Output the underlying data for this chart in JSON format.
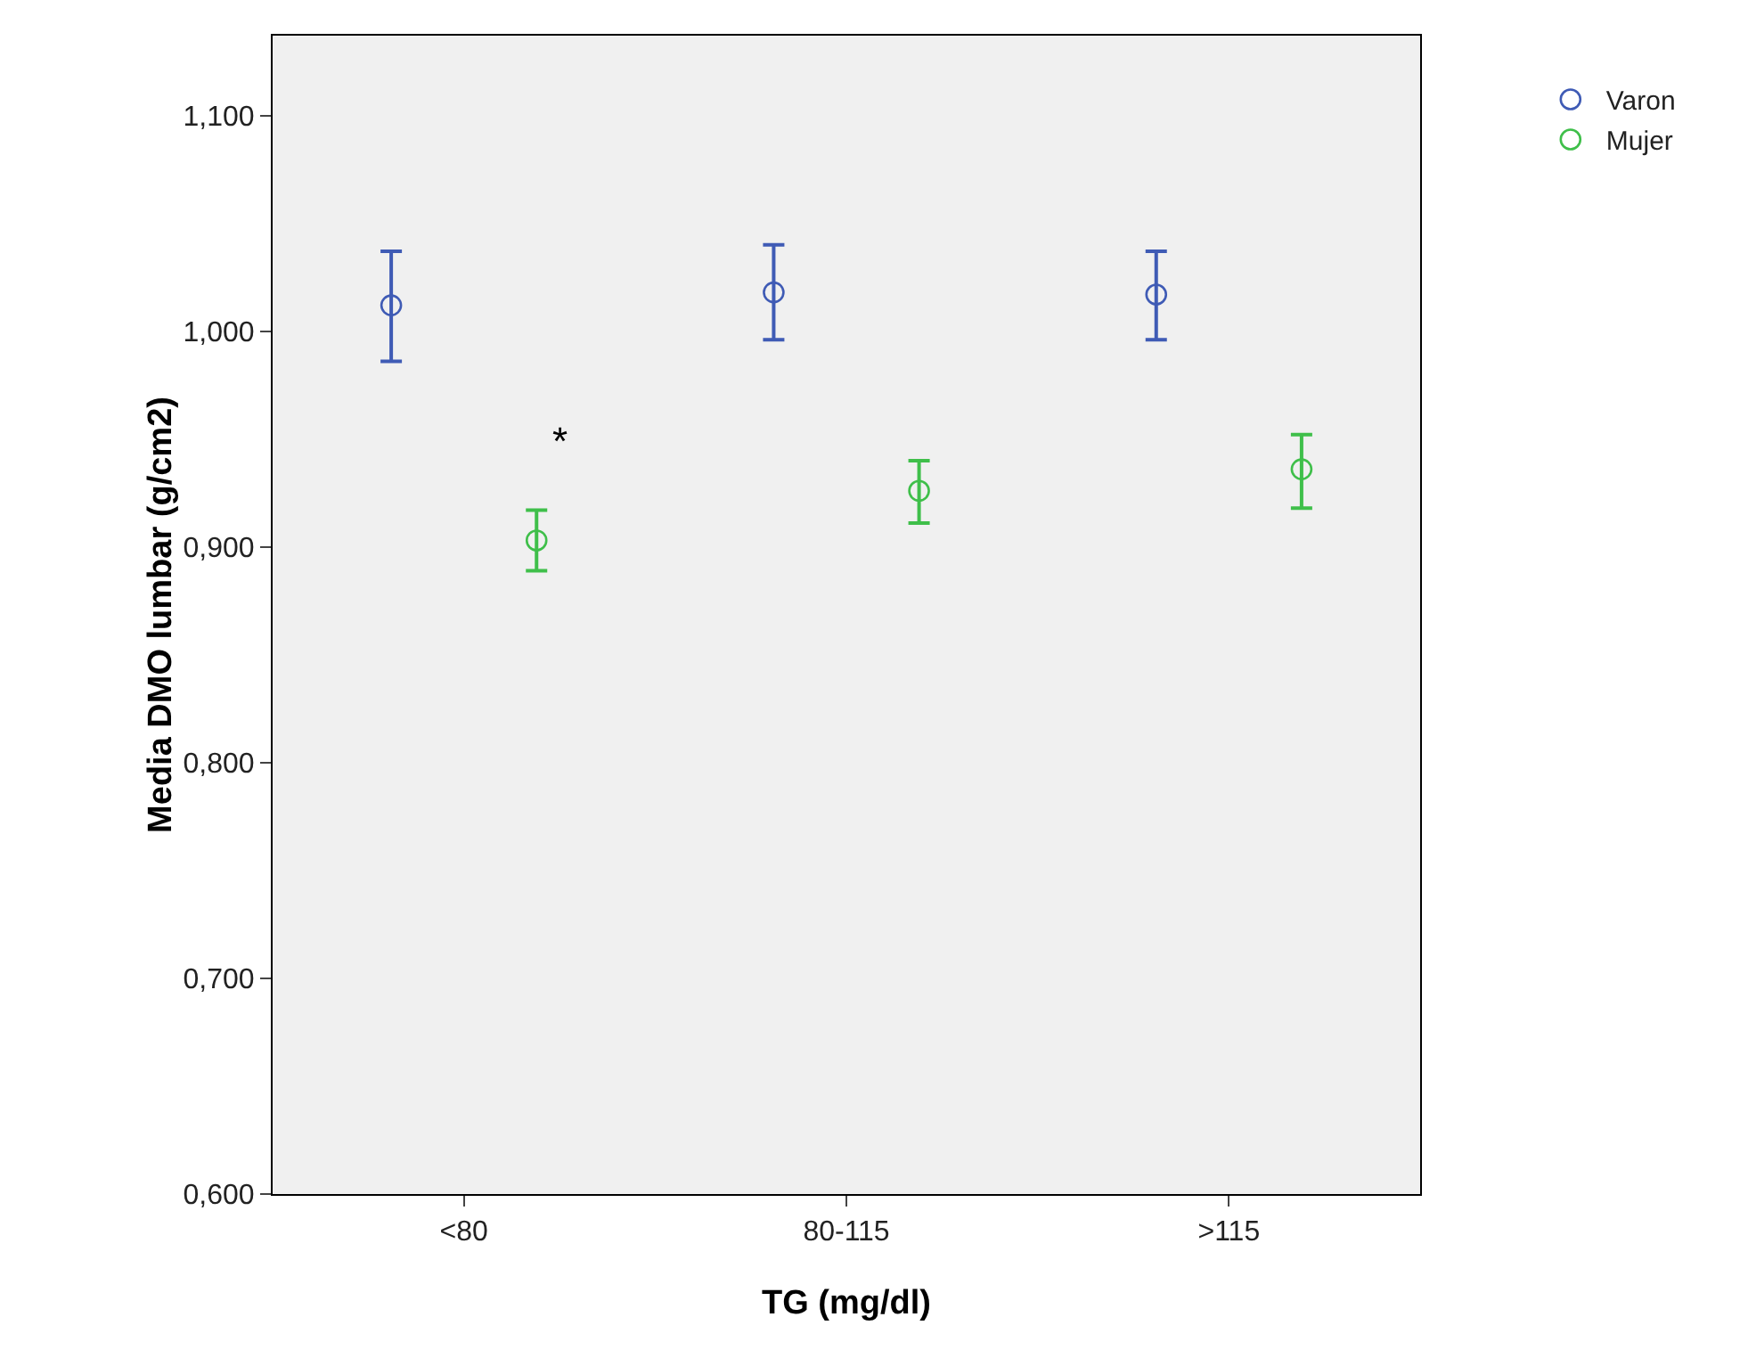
{
  "chart_data": {
    "type": "scatter",
    "xlabel": "TG (mg/dl)",
    "ylabel": "Media DMO lumbar (g/cm2)",
    "categories": [
      "<80",
      "80-115",
      ">115"
    ],
    "series": [
      {
        "name": "Varon",
        "color": "#3f5bb5",
        "values": [
          1.012,
          1.018,
          1.017
        ],
        "errors": [
          [
            0.986,
            1.037
          ],
          [
            0.996,
            1.04
          ],
          [
            0.996,
            1.037
          ]
        ]
      },
      {
        "name": "Mujer",
        "color": "#3fbf4a",
        "values": [
          0.903,
          0.926,
          0.936
        ],
        "errors": [
          [
            0.889,
            0.917
          ],
          [
            0.911,
            0.94
          ],
          [
            0.918,
            0.952
          ]
        ]
      }
    ],
    "ylim": [
      0.6,
      1.137
    ],
    "yticks": [
      {
        "value": 0.6,
        "label": "0,600"
      },
      {
        "value": 0.7,
        "label": "0,700"
      },
      {
        "value": 0.8,
        "label": "0,800"
      },
      {
        "value": 0.9,
        "label": "0,900"
      },
      {
        "value": 1.0,
        "label": "1,000"
      },
      {
        "value": 1.1,
        "label": "1,100"
      }
    ],
    "annotations": [
      "*"
    ],
    "marker": "circle",
    "grid": false,
    "legend": "top right"
  }
}
